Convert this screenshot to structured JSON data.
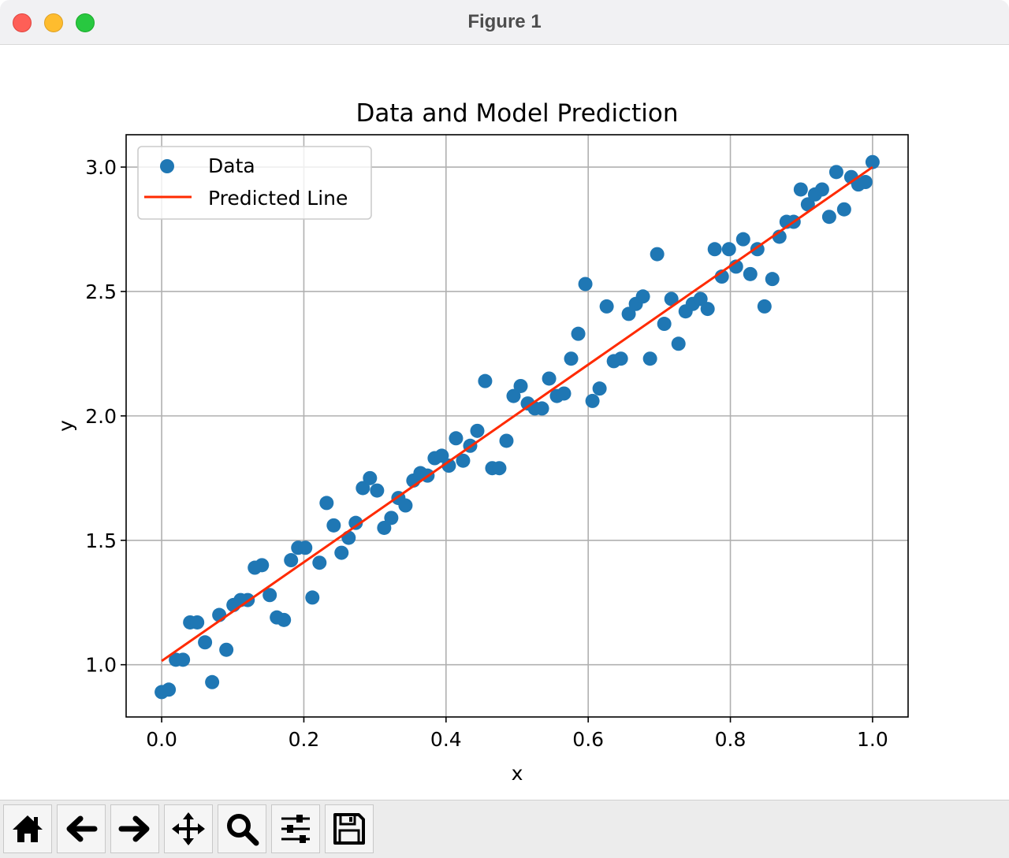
{
  "window": {
    "title": "Figure 1"
  },
  "toolbar": {
    "buttons": [
      {
        "name": "home-button",
        "icon": "home-icon"
      },
      {
        "name": "back-button",
        "icon": "arrow-left-icon"
      },
      {
        "name": "forward-button",
        "icon": "arrow-right-icon"
      },
      {
        "name": "pan-button",
        "icon": "move-icon"
      },
      {
        "name": "zoom-button",
        "icon": "search-icon"
      },
      {
        "name": "configure-subplots-button",
        "icon": "sliders-icon"
      },
      {
        "name": "save-button",
        "icon": "floppy-disk-icon"
      }
    ]
  },
  "chart_data": {
    "type": "scatter",
    "title": "Data and Model Prediction",
    "xlabel": "x",
    "ylabel": "y",
    "xlim": [
      -0.05,
      1.05
    ],
    "ylim": [
      0.79,
      3.13
    ],
    "xticks": [
      "0.0",
      "0.2",
      "0.4",
      "0.6",
      "0.8",
      "1.0"
    ],
    "yticks": [
      "1.0",
      "1.5",
      "2.0",
      "2.5",
      "3.0"
    ],
    "grid": true,
    "legend_position": "top-left",
    "colors": {
      "data": "#1f77b4",
      "line": "#ff2a00"
    },
    "series": [
      {
        "name": "Data",
        "kind": "scatter",
        "x": [
          0.0,
          0.01,
          0.02,
          0.03,
          0.04,
          0.05,
          0.061,
          0.071,
          0.081,
          0.091,
          0.101,
          0.111,
          0.121,
          0.131,
          0.141,
          0.152,
          0.162,
          0.172,
          0.182,
          0.192,
          0.202,
          0.212,
          0.222,
          0.232,
          0.242,
          0.253,
          0.263,
          0.273,
          0.283,
          0.293,
          0.303,
          0.313,
          0.323,
          0.333,
          0.343,
          0.354,
          0.364,
          0.374,
          0.384,
          0.394,
          0.404,
          0.414,
          0.424,
          0.434,
          0.444,
          0.455,
          0.465,
          0.475,
          0.485,
          0.495,
          0.505,
          0.515,
          0.525,
          0.535,
          0.545,
          0.556,
          0.566,
          0.576,
          0.586,
          0.596,
          0.606,
          0.616,
          0.626,
          0.636,
          0.646,
          0.657,
          0.667,
          0.677,
          0.687,
          0.697,
          0.707,
          0.717,
          0.727,
          0.737,
          0.747,
          0.758,
          0.768,
          0.778,
          0.788,
          0.798,
          0.808,
          0.818,
          0.828,
          0.838,
          0.848,
          0.859,
          0.869,
          0.879,
          0.889,
          0.899,
          0.909,
          0.919,
          0.929,
          0.939,
          0.949,
          0.96,
          0.97,
          0.98,
          0.99,
          1.0
        ],
        "y": [
          0.89,
          0.9,
          1.02,
          1.02,
          1.17,
          1.17,
          1.09,
          0.93,
          1.2,
          1.06,
          1.24,
          1.26,
          1.26,
          1.39,
          1.4,
          1.28,
          1.19,
          1.18,
          1.42,
          1.47,
          1.47,
          1.27,
          1.41,
          1.65,
          1.56,
          1.45,
          1.51,
          1.57,
          1.71,
          1.75,
          1.7,
          1.55,
          1.59,
          1.67,
          1.64,
          1.74,
          1.77,
          1.76,
          1.83,
          1.84,
          1.8,
          1.91,
          1.82,
          1.88,
          1.94,
          2.14,
          1.79,
          1.79,
          1.9,
          2.08,
          2.12,
          2.05,
          2.03,
          2.03,
          2.15,
          2.08,
          2.09,
          2.23,
          2.33,
          2.53,
          2.06,
          2.11,
          2.44,
          2.22,
          2.23,
          2.41,
          2.45,
          2.48,
          2.23,
          2.65,
          2.37,
          2.47,
          2.29,
          2.42,
          2.45,
          2.47,
          2.43,
          2.67,
          2.56,
          2.67,
          2.6,
          2.71,
          2.57,
          2.67,
          2.44,
          2.55,
          2.72,
          2.78,
          2.78,
          2.91,
          2.85,
          2.89,
          2.91,
          2.8,
          2.98,
          2.83,
          2.96,
          2.93,
          2.94,
          3.02
        ]
      },
      {
        "name": "Predicted Line",
        "kind": "line",
        "x": [
          0.0,
          1.0
        ],
        "y": [
          1.015,
          3.0
        ]
      }
    ]
  }
}
